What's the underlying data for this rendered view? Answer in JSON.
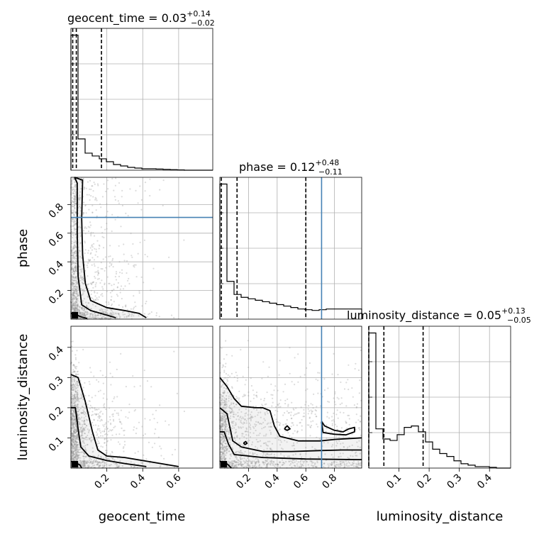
{
  "chart_data": {
    "type": "corner",
    "parameters": [
      "geocent_time",
      "phase",
      "luminosity_distance"
    ],
    "axis_labels": [
      "geocent_time",
      "phase",
      "luminosity_distance"
    ],
    "ranges": [
      [
        0.0,
        0.79
      ],
      [
        0.0,
        0.99
      ],
      [
        0.0,
        0.47
      ]
    ],
    "ticks": [
      [
        0.2,
        0.4,
        0.6
      ],
      [
        0.2,
        0.4,
        0.6,
        0.8
      ],
      [
        0.1,
        0.2,
        0.3,
        0.4
      ]
    ],
    "tick_labels": [
      [
        "0.2",
        "0.4",
        "0.6"
      ],
      [
        "0.2",
        "0.4",
        "0.6",
        "0.8"
      ],
      [
        "0.1",
        "0.2",
        "0.3",
        "0.4"
      ]
    ],
    "titles": [
      {
        "prefix": "geocent_time = 0.03",
        "plus": "+0.14",
        "minus": "−0.02"
      },
      {
        "prefix": "phase = 0.12",
        "plus": "+0.48",
        "minus": "−0.11"
      },
      {
        "prefix": "luminosity_distance = 0.05",
        "plus": "+0.13",
        "minus": "−0.05"
      }
    ],
    "quantiles": [
      [
        0.01,
        0.03,
        0.17
      ],
      [
        0.01,
        0.12,
        0.6
      ],
      [
        0.0,
        0.05,
        0.18
      ]
    ],
    "truths": [
      null,
      0.71,
      null
    ],
    "histograms": [
      {
        "edges": [
          0.0,
          0.0395,
          0.079,
          0.1185,
          0.158,
          0.1975,
          0.237,
          0.2765,
          0.316,
          0.3555,
          0.395,
          0.4345,
          0.474,
          0.5135,
          0.553,
          0.5925,
          0.632,
          0.79
        ],
        "counts": [
          95,
          22,
          12,
          10,
          8,
          6,
          4,
          3,
          2,
          1.5,
          1,
          1,
          0.8,
          0.6,
          0.4,
          0.2,
          0
        ]
      },
      {
        "edges": [
          0.0,
          0.0495,
          0.099,
          0.1485,
          0.198,
          0.2475,
          0.297,
          0.3465,
          0.396,
          0.4455,
          0.495,
          0.5445,
          0.594,
          0.6435,
          0.693,
          0.7425,
          0.792,
          0.8415,
          0.891,
          0.9405,
          0.99
        ],
        "counts": [
          93,
          26,
          17,
          15,
          14,
          13,
          12,
          11,
          10,
          9,
          8,
          7,
          6.5,
          6,
          6.5,
          7,
          7,
          7,
          7,
          7
        ]
      },
      {
        "edges": [
          0.0,
          0.0235,
          0.047,
          0.0705,
          0.094,
          0.1175,
          0.141,
          0.1645,
          0.188,
          0.2115,
          0.235,
          0.2585,
          0.282,
          0.3055,
          0.329,
          0.3525,
          0.376,
          0.3995,
          0.423,
          0.4465,
          0.47
        ],
        "counts": [
          93,
          27,
          20,
          19,
          23,
          28,
          29,
          25,
          18,
          13,
          10,
          8,
          5,
          3,
          2,
          1,
          1,
          0.5,
          0,
          0
        ]
      }
    ],
    "density_contours": [
      {
        "x": "geocent_time",
        "y": "phase",
        "levels": [
          [
            [
              0.02,
              0.99
            ],
            [
              0.065,
              0.97
            ],
            [
              0.06,
              0.7
            ],
            [
              0.065,
              0.45
            ],
            [
              0.08,
              0.25
            ],
            [
              0.11,
              0.13
            ],
            [
              0.2,
              0.08
            ],
            [
              0.3,
              0.06
            ],
            [
              0.38,
              0.04
            ],
            [
              0.42,
              0.01
            ]
          ],
          [
            [
              0.02,
              0.99
            ],
            [
              0.035,
              0.95
            ],
            [
              0.035,
              0.6
            ],
            [
              0.04,
              0.3
            ],
            [
              0.06,
              0.1
            ],
            [
              0.11,
              0.06
            ],
            [
              0.18,
              0.035
            ],
            [
              0.25,
              0.01
            ]
          ],
          [
            [
              0.0,
              0.04
            ],
            [
              0.03,
              0.03
            ],
            [
              0.06,
              0.015
            ],
            [
              0.09,
              0.005
            ]
          ]
        ]
      },
      {
        "x": "geocent_time",
        "y": "luminosity_distance",
        "levels": [
          [
            [
              0.0,
              0.31
            ],
            [
              0.04,
              0.3
            ],
            [
              0.08,
              0.22
            ],
            [
              0.12,
              0.12
            ],
            [
              0.15,
              0.06
            ],
            [
              0.2,
              0.04
            ],
            [
              0.3,
              0.035
            ],
            [
              0.4,
              0.025
            ],
            [
              0.5,
              0.015
            ],
            [
              0.6,
              0.005
            ]
          ],
          [
            [
              0.0,
              0.2
            ],
            [
              0.025,
              0.2
            ],
            [
              0.04,
              0.13
            ],
            [
              0.055,
              0.07
            ],
            [
              0.1,
              0.04
            ],
            [
              0.2,
              0.025
            ],
            [
              0.3,
              0.015
            ],
            [
              0.42,
              0.005
            ]
          ],
          [
            [
              0.0,
              0.022
            ],
            [
              0.02,
              0.02
            ],
            [
              0.05,
              0.01
            ],
            [
              0.06,
              0.0
            ]
          ]
        ]
      },
      {
        "x": "phase",
        "y": "luminosity_distance",
        "levels": [
          [
            [
              0.0,
              0.3
            ],
            [
              0.05,
              0.27
            ],
            [
              0.1,
              0.23
            ],
            [
              0.15,
              0.205
            ],
            [
              0.25,
              0.2
            ],
            [
              0.3,
              0.2
            ],
            [
              0.35,
              0.19
            ],
            [
              0.38,
              0.14
            ],
            [
              0.42,
              0.105
            ],
            [
              0.55,
              0.09
            ],
            [
              0.7,
              0.09
            ],
            [
              0.8,
              0.095
            ],
            [
              0.99,
              0.1
            ]
          ],
          [
            [
              0.0,
              0.2
            ],
            [
              0.05,
              0.18
            ],
            [
              0.09,
              0.09
            ],
            [
              0.15,
              0.07
            ],
            [
              0.3,
              0.055
            ],
            [
              0.5,
              0.055
            ],
            [
              0.7,
              0.058
            ],
            [
              0.85,
              0.06
            ],
            [
              0.99,
              0.06
            ]
          ],
          [
            [
              0.0,
              0.12
            ],
            [
              0.03,
              0.12
            ],
            [
              0.06,
              0.08
            ],
            [
              0.1,
              0.045
            ],
            [
              0.3,
              0.035
            ],
            [
              0.6,
              0.03
            ],
            [
              0.99,
              0.028
            ]
          ],
          [
            [
              0.0,
              0.022
            ],
            [
              0.03,
              0.02
            ],
            [
              0.06,
              0.01
            ],
            [
              0.08,
              0.0
            ]
          ]
        ],
        "islands": [
          [
            [
              0.45,
              0.13
            ],
            [
              0.47,
              0.14
            ],
            [
              0.49,
              0.13
            ],
            [
              0.47,
              0.125
            ],
            [
              0.45,
              0.13
            ]
          ],
          [
            [
              0.165,
              0.083
            ],
            [
              0.18,
              0.088
            ],
            [
              0.19,
              0.082
            ],
            [
              0.175,
              0.078
            ],
            [
              0.165,
              0.083
            ]
          ],
          [
            [
              0.71,
              0.155
            ],
            [
              0.73,
              0.14
            ],
            [
              0.8,
              0.125
            ],
            [
              0.86,
              0.12
            ],
            [
              0.9,
              0.13
            ],
            [
              0.94,
              0.135
            ],
            [
              0.94,
              0.12
            ],
            [
              0.88,
              0.11
            ],
            [
              0.8,
              0.112
            ],
            [
              0.72,
              0.118
            ],
            [
              0.71,
              0.155
            ]
          ]
        ]
      }
    ]
  }
}
